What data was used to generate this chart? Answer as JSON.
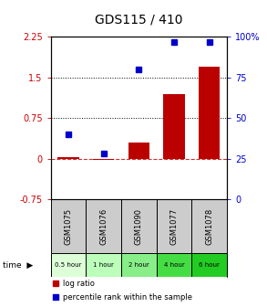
{
  "title": "GDS115 / 410",
  "samples": [
    "GSM1075",
    "GSM1076",
    "GSM1090",
    "GSM1077",
    "GSM1078"
  ],
  "time_labels": [
    "0.5 hour",
    "1 hour",
    "2 hour",
    "4 hour",
    "6 hour"
  ],
  "time_colors": [
    "#ddffd8",
    "#bbffbb",
    "#88ee88",
    "#44dd44",
    "#22cc22"
  ],
  "log_ratios": [
    0.02,
    -0.02,
    0.3,
    1.2,
    1.7
  ],
  "percentile_ranks": [
    40,
    28,
    80,
    97,
    97
  ],
  "bar_color": "#bb0000",
  "dot_color": "#0000cc",
  "ylim_left": [
    -0.75,
    2.25
  ],
  "ylim_right": [
    0,
    100
  ],
  "yticks_left": [
    -0.75,
    0,
    0.75,
    1.5,
    2.25
  ],
  "yticks_right": [
    0,
    25,
    50,
    75,
    100
  ],
  "hline_zero_color": "#cc3333",
  "hline_dotted_vals": [
    0.75,
    1.5
  ],
  "background_color": "#ffffff",
  "header_bg": "#cccccc"
}
